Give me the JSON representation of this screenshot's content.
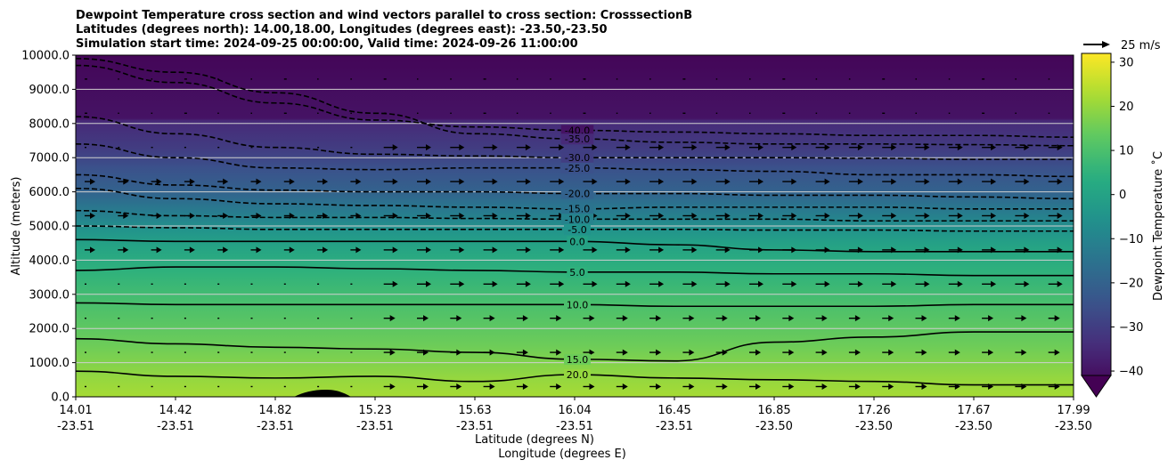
{
  "chart_data": {
    "type": "heatmap",
    "title_lines": [
      "Dewpoint Temperature cross section and wind vectors parallel to cross section: CrosssectionB",
      "Latitudes (degrees north): 14.00,18.00, Longitudes (degrees east): -23.50,-23.50",
      "Simulation start time: 2024-09-25 00:00:00, Valid time: 2024-09-26 11:00:00"
    ],
    "ylabel": "Altitude (meters)",
    "xlabel_lat": "Latitude (degrees N)",
    "xlabel_lon": "Longitude (degrees E)",
    "ylim": [
      0,
      10000
    ],
    "y_ticks": [
      "0.0",
      "1000.0",
      "2000.0",
      "3000.0",
      "4000.0",
      "5000.0",
      "6000.0",
      "7000.0",
      "8000.0",
      "9000.0",
      "10000.0"
    ],
    "x_ticks": [
      {
        "lat": "14.01",
        "lon": "-23.51"
      },
      {
        "lat": "14.42",
        "lon": "-23.51"
      },
      {
        "lat": "14.82",
        "lon": "-23.51"
      },
      {
        "lat": "15.23",
        "lon": "-23.51"
      },
      {
        "lat": "15.63",
        "lon": "-23.51"
      },
      {
        "lat": "16.04",
        "lon": "-23.51"
      },
      {
        "lat": "16.45",
        "lon": "-23.51"
      },
      {
        "lat": "16.85",
        "lon": "-23.50"
      },
      {
        "lat": "17.26",
        "lon": "-23.50"
      },
      {
        "lat": "17.67",
        "lon": "-23.50"
      },
      {
        "lat": "17.99",
        "lon": "-23.50"
      }
    ],
    "grid": "horizontal",
    "colorbar": {
      "label": "Dewpoint Temperature ˚C",
      "range": [
        -44,
        32
      ],
      "ticks": [
        "30",
        "20",
        "10",
        "0",
        "−10",
        "−20",
        "−30",
        "−40"
      ],
      "tick_values": [
        30,
        20,
        10,
        0,
        -10,
        -20,
        -30,
        -40
      ],
      "colormap": "viridis"
    },
    "quiver_key": "25 m/s",
    "contours": [
      {
        "value": -40,
        "label": "-40.0",
        "y": [
          9700,
          9200,
          8600,
          8100,
          7900,
          7800,
          7750,
          7700,
          7650,
          7650,
          7600
        ]
      },
      {
        "value": -35,
        "label": "-35.0",
        "y": [
          9900,
          9500,
          8900,
          8300,
          7700,
          7550,
          7450,
          7400,
          7400,
          7380,
          7350
        ]
      },
      {
        "value": -30,
        "label": "-30.0",
        "y": [
          8200,
          7700,
          7300,
          7100,
          7050,
          7000,
          7000,
          7000,
          6980,
          6950,
          6950
        ]
      },
      {
        "value": -25,
        "label": "-25.0",
        "y": [
          7400,
          7000,
          6700,
          6650,
          6700,
          6700,
          6650,
          6600,
          6500,
          6500,
          6450
        ]
      },
      {
        "value": -20,
        "label": "-20.0",
        "y": [
          6500,
          6200,
          6050,
          6000,
          6000,
          5950,
          5950,
          5900,
          5900,
          5850,
          5800
        ]
      },
      {
        "value": -15,
        "label": "-15.0",
        "y": [
          6100,
          5800,
          5650,
          5600,
          5550,
          5500,
          5550,
          5550,
          5550,
          5500,
          5500
        ]
      },
      {
        "value": -10,
        "label": "-10.0",
        "y": [
          5450,
          5300,
          5250,
          5250,
          5220,
          5200,
          5200,
          5200,
          5150,
          5150,
          5150
        ]
      },
      {
        "value": -5,
        "label": "-5.0",
        "y": [
          5000,
          4950,
          4900,
          4900,
          4900,
          4900,
          4900,
          4880,
          4880,
          4850,
          4850
        ]
      },
      {
        "value": 0,
        "label": "0.0",
        "y": [
          4600,
          4550,
          4550,
          4550,
          4550,
          4550,
          4450,
          4300,
          4250,
          4250,
          4250
        ]
      },
      {
        "value": 5,
        "label": "5.0",
        "y": [
          3700,
          3800,
          3800,
          3750,
          3700,
          3650,
          3650,
          3600,
          3600,
          3550,
          3550
        ]
      },
      {
        "value": 10,
        "label": "10.0",
        "y": [
          2750,
          2700,
          2700,
          2700,
          2700,
          2700,
          2650,
          2650,
          2650,
          2700,
          2700
        ]
      },
      {
        "value": 15,
        "label": "15.0",
        "y": [
          1700,
          1550,
          1450,
          1400,
          1300,
          1100,
          1050,
          1600,
          1750,
          1900,
          1900
        ]
      },
      {
        "value": 20,
        "label": "20.0",
        "y": [
          750,
          600,
          550,
          600,
          450,
          650,
          550,
          500,
          450,
          350,
          350
        ]
      }
    ]
  }
}
